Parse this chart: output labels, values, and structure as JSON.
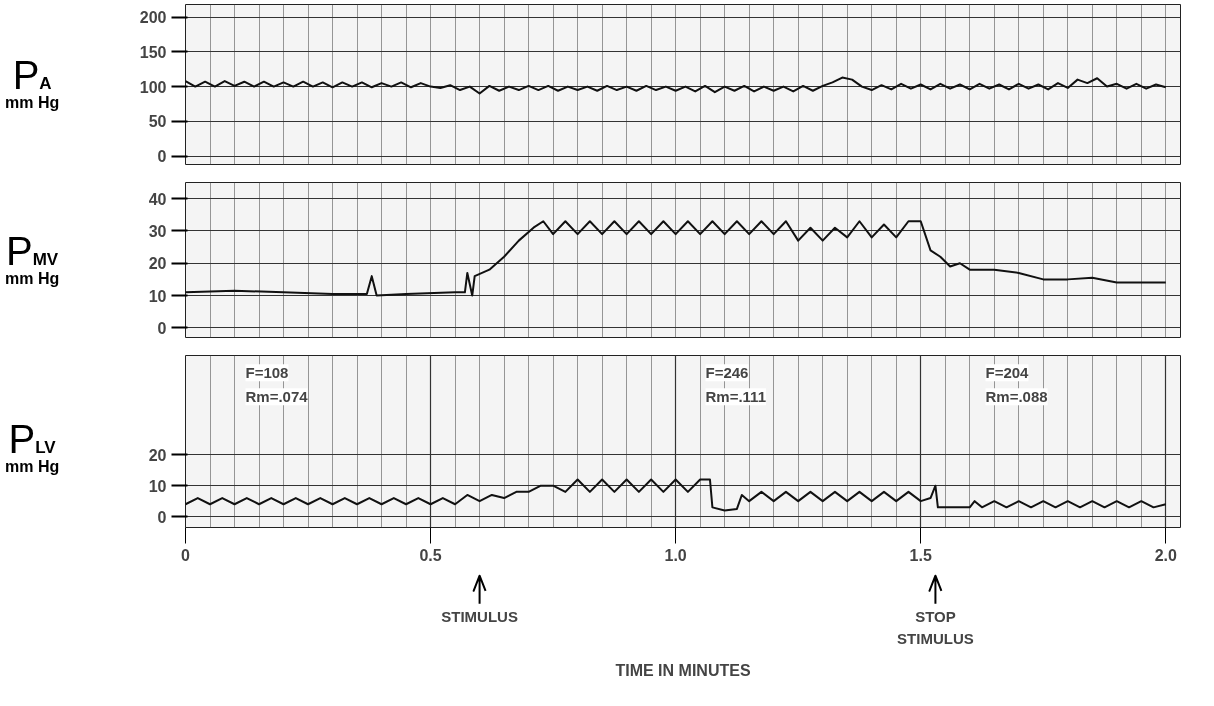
{
  "chart_data": [
    {
      "type": "line",
      "ylabel": "P$_{A}$ mm Hg",
      "xlim": [
        0,
        2.03
      ],
      "ylim": [
        -12,
        218
      ],
      "yticks": [
        0,
        50,
        100,
        150,
        200
      ],
      "tick_labels": "y",
      "grid": true,
      "series": [
        {
          "color": "#111111",
          "x": [
            0,
            0.02,
            0.04,
            0.06,
            0.08,
            0.1,
            0.12,
            0.14,
            0.16,
            0.18,
            0.2,
            0.22,
            0.24,
            0.26,
            0.28,
            0.3,
            0.32,
            0.34,
            0.36,
            0.38,
            0.4,
            0.42,
            0.44,
            0.46,
            0.48,
            0.5,
            0.52,
            0.54,
            0.56,
            0.58,
            0.6,
            0.62,
            0.64,
            0.66,
            0.68,
            0.7,
            0.72,
            0.74,
            0.76,
            0.78,
            0.8,
            0.82,
            0.84,
            0.86,
            0.88,
            0.9,
            0.92,
            0.94,
            0.96,
            0.98,
            1.0,
            1.02,
            1.04,
            1.06,
            1.08,
            1.1,
            1.12,
            1.14,
            1.16,
            1.18,
            1.2,
            1.22,
            1.24,
            1.26,
            1.28,
            1.3,
            1.32,
            1.34,
            1.36,
            1.38,
            1.4,
            1.42,
            1.44,
            1.46,
            1.48,
            1.5,
            1.52,
            1.54,
            1.56,
            1.58,
            1.6,
            1.62,
            1.64,
            1.66,
            1.68,
            1.7,
            1.72,
            1.74,
            1.76,
            1.78,
            1.8,
            1.82,
            1.84,
            1.86,
            1.88,
            1.9,
            1.92,
            1.94,
            1.96,
            1.98,
            2.0
          ],
          "values": [
            108,
            100,
            107,
            100,
            108,
            101,
            107,
            100,
            107,
            100,
            106,
            100,
            107,
            100,
            106,
            99,
            106,
            100,
            106,
            99,
            105,
            100,
            106,
            99,
            105,
            100,
            98,
            102,
            95,
            100,
            90,
            101,
            94,
            100,
            95,
            101,
            95,
            101,
            94,
            100,
            95,
            100,
            94,
            101,
            95,
            100,
            94,
            101,
            95,
            100,
            94,
            100,
            93,
            101,
            92,
            100,
            94,
            101,
            93,
            100,
            94,
            100,
            93,
            101,
            94,
            101,
            106,
            113,
            110,
            100,
            95,
            102,
            96,
            104,
            97,
            103,
            96,
            104,
            97,
            103,
            96,
            104,
            97,
            103,
            96,
            104,
            97,
            103,
            96,
            105,
            98,
            110,
            105,
            112,
            100,
            104,
            97,
            104,
            97,
            103,
            99
          ]
        }
      ]
    },
    {
      "type": "line",
      "ylabel": "P$_{MV}$ mm Hg",
      "xlim": [
        0,
        2.03
      ],
      "ylim": [
        -3,
        45
      ],
      "yticks": [
        0,
        10,
        20,
        30,
        40
      ],
      "tick_labels": "y",
      "grid": true,
      "series": [
        {
          "color": "#111111",
          "x": [
            0,
            0.1,
            0.2,
            0.3,
            0.37,
            0.38,
            0.39,
            0.45,
            0.55,
            0.57,
            0.575,
            0.585,
            0.59,
            0.62,
            0.65,
            0.68,
            0.71,
            0.73,
            0.75,
            0.775,
            0.8,
            0.825,
            0.85,
            0.875,
            0.9,
            0.925,
            0.95,
            0.975,
            1.0,
            1.025,
            1.05,
            1.075,
            1.1,
            1.125,
            1.15,
            1.175,
            1.2,
            1.225,
            1.25,
            1.275,
            1.3,
            1.325,
            1.35,
            1.375,
            1.4,
            1.425,
            1.45,
            1.475,
            1.5,
            1.52,
            1.54,
            1.56,
            1.58,
            1.6,
            1.65,
            1.7,
            1.75,
            1.8,
            1.85,
            1.9,
            2.0
          ],
          "values": [
            11,
            11.5,
            11,
            10.5,
            10.5,
            16,
            10,
            10.5,
            11,
            11,
            17,
            10,
            16,
            18,
            22,
            27,
            31,
            33,
            29,
            33,
            29,
            33,
            29,
            33,
            29,
            33,
            29,
            33,
            29,
            33,
            29,
            33,
            29,
            33,
            29,
            33,
            29,
            33,
            27,
            31,
            27,
            31,
            28,
            33,
            28,
            32,
            28,
            33,
            33,
            24,
            22,
            19,
            20,
            18,
            18,
            17,
            15,
            15,
            15.5,
            14,
            14
          ]
        }
      ]
    },
    {
      "type": "line",
      "ylabel": "P$_{LV}$ mm Hg",
      "xlabel": "TIME IN MINUTES",
      "xlim": [
        0,
        2.03
      ],
      "ylim": [
        -3.5,
        52
      ],
      "yticks": [
        0,
        10,
        20
      ],
      "xticks": [
        0,
        0.5,
        {
          "value": 1,
          "label": "1.0"
        },
        1.5,
        {
          "value": 2,
          "label": "2.0"
        }
      ],
      "grid": true,
      "series": [
        {
          "color": "#111111",
          "x": [
            0,
            0.025,
            0.05,
            0.075,
            0.1,
            0.125,
            0.15,
            0.175,
            0.2,
            0.225,
            0.25,
            0.275,
            0.3,
            0.325,
            0.35,
            0.375,
            0.4,
            0.425,
            0.45,
            0.475,
            0.5,
            0.525,
            0.55,
            0.575,
            0.6,
            0.625,
            0.65,
            0.675,
            0.7,
            0.725,
            0.75,
            0.775,
            0.8,
            0.825,
            0.85,
            0.875,
            0.9,
            0.925,
            0.95,
            0.975,
            1.0,
            1.025,
            1.05,
            1.07,
            1.075,
            1.1,
            1.125,
            1.135,
            1.15,
            1.175,
            1.2,
            1.225,
            1.25,
            1.275,
            1.3,
            1.325,
            1.35,
            1.375,
            1.4,
            1.425,
            1.45,
            1.475,
            1.5,
            1.52,
            1.53,
            1.535,
            1.6,
            1.61,
            1.625,
            1.65,
            1.675,
            1.7,
            1.725,
            1.75,
            1.775,
            1.8,
            1.825,
            1.85,
            1.875,
            1.9,
            1.925,
            1.95,
            1.975,
            2.0
          ],
          "values": [
            4,
            6,
            4,
            6,
            4,
            6,
            4,
            6,
            4,
            6,
            4,
            6,
            4,
            6,
            4,
            6,
            4,
            6,
            4,
            6,
            4,
            6,
            4,
            7,
            5,
            7,
            6,
            8,
            8,
            10,
            10,
            8,
            12,
            8,
            12,
            8,
            12,
            8,
            12,
            8,
            12,
            8,
            12,
            12,
            3,
            2,
            2.5,
            7,
            5,
            8,
            5,
            8,
            5,
            8,
            5,
            8,
            5,
            8,
            5,
            8,
            5,
            8,
            5,
            6,
            10,
            3,
            3,
            5,
            3,
            5,
            3,
            5,
            3,
            5,
            3,
            5,
            3,
            5,
            3,
            5,
            3,
            5,
            3,
            4
          ]
        }
      ],
      "annotations": [
        "F=108",
        "Rm=.074",
        "F=246",
        "Rm=.111",
        "F=204",
        "Rm=.088",
        {
          "text": "STIMULUS",
          "x": 0.6
        },
        {
          "text": "STOP\nSTIMULUS",
          "x": 1.53
        }
      ]
    }
  ]
}
